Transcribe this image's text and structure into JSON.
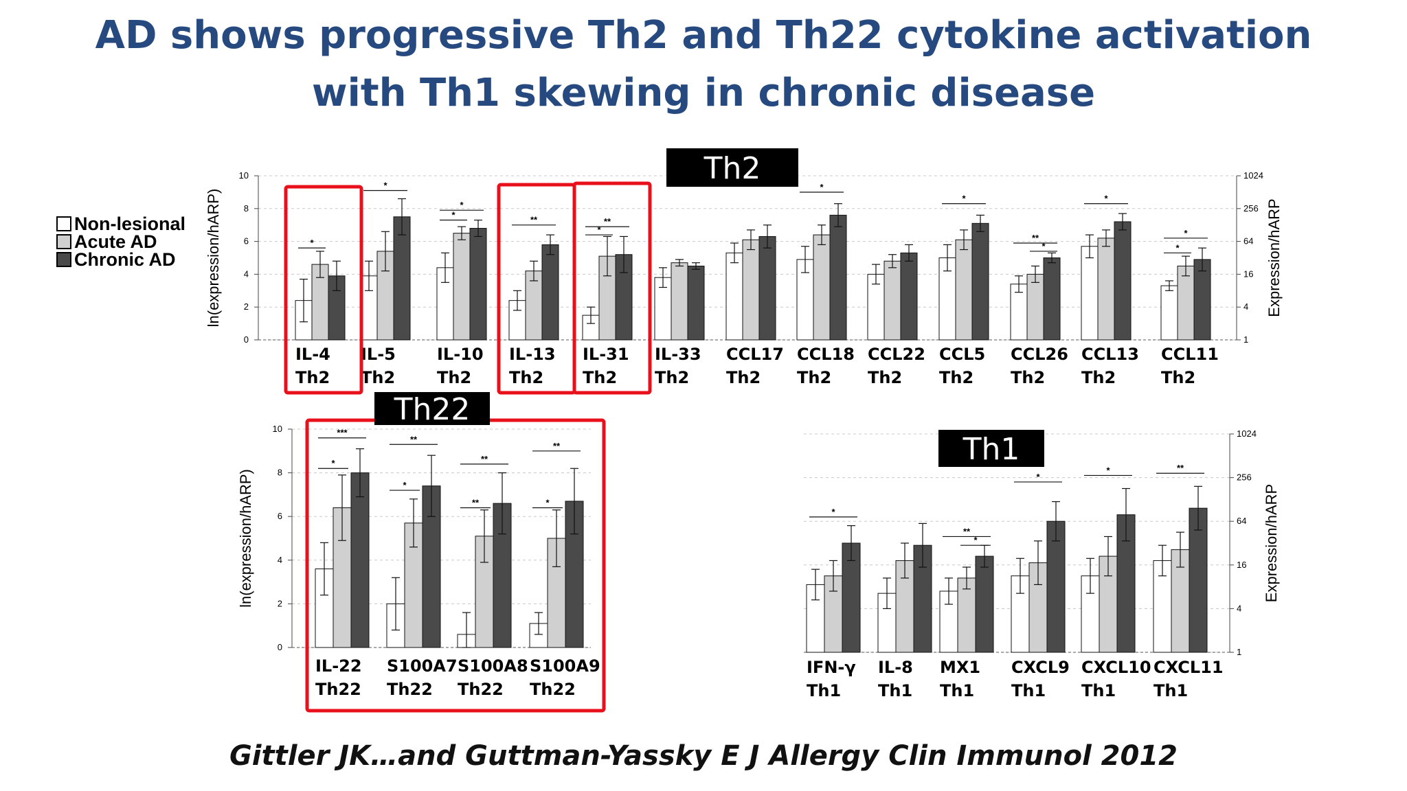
{
  "title": {
    "line1": "AD shows progressive Th2 and Th22 cytokine activation",
    "line2": "with Th1 skewing in chronic disease"
  },
  "legend": [
    {
      "label": "Non-lesional",
      "color": "#ffffff"
    },
    {
      "label": "Acute AD",
      "color": "#d0d0d0"
    },
    {
      "label": "Chronic AD",
      "color": "#4a4a4a"
    }
  ],
  "citation": "Gittler JK…and Guttman-Yassky E J Allergy Clin Immunol 2012",
  "colors": {
    "highlight_box": "#e8111b",
    "badge_bg": "#000000",
    "title": "#264a7f"
  },
  "chart_data": [
    {
      "type": "bar",
      "id": "th2",
      "badge": "Th2",
      "ylabel": "ln(expression/hARP)",
      "y2label": "Expression/hARP",
      "ylim": [
        0,
        10
      ],
      "yticks": [
        "0",
        "2",
        "4",
        "6",
        "8",
        "10"
      ],
      "y2ticks": [
        "1",
        "4",
        "16",
        "64",
        "256",
        "1024"
      ],
      "grid": true,
      "series": [
        {
          "name": "Non-lesional",
          "values": [
            2.4,
            3.9,
            4.4,
            2.4,
            1.5,
            3.8,
            5.3,
            4.9,
            4.0,
            5.0,
            3.4,
            5.7,
            3.3
          ]
        },
        {
          "name": "Acute AD",
          "values": [
            4.6,
            5.4,
            6.5,
            4.2,
            5.1,
            4.7,
            6.1,
            6.4,
            4.8,
            6.1,
            4.0,
            6.2,
            4.5
          ]
        },
        {
          "name": "Chronic AD",
          "values": [
            3.9,
            7.5,
            6.8,
            5.8,
            5.2,
            4.5,
            6.3,
            7.6,
            5.3,
            7.1,
            5.0,
            7.2,
            4.9
          ]
        }
      ],
      "errors": [
        [
          1.3,
          0.9,
          0.9,
          0.6,
          0.5,
          0.6,
          0.6,
          0.8,
          0.6,
          0.8,
          0.5,
          0.7,
          0.3
        ],
        [
          0.8,
          1.2,
          0.4,
          0.6,
          1.2,
          0.2,
          0.6,
          0.6,
          0.4,
          0.6,
          0.5,
          0.5,
          0.6
        ],
        [
          0.9,
          1.1,
          0.5,
          0.6,
          1.1,
          0.2,
          0.7,
          0.7,
          0.5,
          0.5,
          0.3,
          0.5,
          0.7
        ]
      ],
      "categories": [
        {
          "name": "IL-4",
          "group": "Th2"
        },
        {
          "name": "IL-5",
          "group": "Th2"
        },
        {
          "name": "IL-10",
          "group": "Th2"
        },
        {
          "name": "IL-13",
          "group": "Th2"
        },
        {
          "name": "IL-31",
          "group": "Th2"
        },
        {
          "name": "IL-33",
          "group": "Th2"
        },
        {
          "name": "CCL17",
          "group": "Th2"
        },
        {
          "name": "CCL18",
          "group": "Th2"
        },
        {
          "name": "CCL22",
          "group": "Th2"
        },
        {
          "name": "CCL5",
          "group": "Th2"
        },
        {
          "name": "CCL26",
          "group": "Th2"
        },
        {
          "name": "CCL13",
          "group": "Th2"
        },
        {
          "name": "CCL11",
          "group": "Th2"
        }
      ],
      "significance": [
        {
          "cat": 0,
          "from": 0,
          "to": 1,
          "y": 5.6,
          "label": "*"
        },
        {
          "cat": 1,
          "from": 0,
          "to": 2,
          "y": 9.1,
          "label": "*"
        },
        {
          "cat": 2,
          "from": 0,
          "to": 1,
          "y": 7.3,
          "label": "*"
        },
        {
          "cat": 2,
          "from": 0,
          "to": 2,
          "y": 7.9,
          "label": "*"
        },
        {
          "cat": 3,
          "from": 0,
          "to": 2,
          "y": 7.0,
          "label": "**"
        },
        {
          "cat": 4,
          "from": 0,
          "to": 1,
          "y": 6.4,
          "label": "*"
        },
        {
          "cat": 4,
          "from": 0,
          "to": 2,
          "y": 6.9,
          "label": "**"
        },
        {
          "cat": 7,
          "from": 0,
          "to": 2,
          "y": 9.0,
          "label": "*"
        },
        {
          "cat": 9,
          "from": 0,
          "to": 2,
          "y": 8.3,
          "label": "*"
        },
        {
          "cat": 10,
          "from": 0,
          "to": 2,
          "y": 5.9,
          "label": "**"
        },
        {
          "cat": 10,
          "from": 1,
          "to": 2,
          "y": 5.4,
          "label": "*"
        },
        {
          "cat": 11,
          "from": 0,
          "to": 2,
          "y": 8.3,
          "label": "*"
        },
        {
          "cat": 12,
          "from": 0,
          "to": 2,
          "y": 6.2,
          "label": "*"
        },
        {
          "cat": 12,
          "from": 0,
          "to": 1,
          "y": 5.3,
          "label": "*"
        }
      ],
      "highlighted": [
        0,
        3,
        4
      ]
    },
    {
      "type": "bar",
      "id": "th22",
      "badge": "Th22",
      "ylabel": "ln(expression/hARP)",
      "ylim": [
        0,
        10
      ],
      "yticks": [
        "0",
        "2",
        "4",
        "6",
        "8",
        "10"
      ],
      "grid": true,
      "series": [
        {
          "name": "Non-lesional",
          "values": [
            3.6,
            2.0,
            0.6,
            1.1
          ]
        },
        {
          "name": "Acute AD",
          "values": [
            6.4,
            5.7,
            5.1,
            5.0
          ]
        },
        {
          "name": "Chronic AD",
          "values": [
            8.0,
            7.4,
            6.6,
            6.7
          ]
        }
      ],
      "errors": [
        [
          1.2,
          1.2,
          1.0,
          0.5
        ],
        [
          1.5,
          1.1,
          1.2,
          1.3
        ],
        [
          1.1,
          1.4,
          1.4,
          1.5
        ]
      ],
      "categories": [
        {
          "name": "IL-22",
          "group": "Th22"
        },
        {
          "name": "S100A7",
          "group": "Th22"
        },
        {
          "name": "S100A8",
          "group": "Th22"
        },
        {
          "name": "S100A9",
          "group": "Th22"
        }
      ],
      "significance": [
        {
          "cat": 0,
          "from": 0,
          "to": 1,
          "y": 8.2,
          "label": "*"
        },
        {
          "cat": 0,
          "from": 0,
          "to": 2,
          "y": 9.6,
          "label": "***"
        },
        {
          "cat": 1,
          "from": 0,
          "to": 1,
          "y": 7.2,
          "label": "*"
        },
        {
          "cat": 1,
          "from": 0,
          "to": 2,
          "y": 9.3,
          "label": "**"
        },
        {
          "cat": 2,
          "from": 0,
          "to": 1,
          "y": 6.4,
          "label": "**"
        },
        {
          "cat": 2,
          "from": 0,
          "to": 2,
          "y": 8.4,
          "label": "**"
        },
        {
          "cat": 3,
          "from": 0,
          "to": 1,
          "y": 6.4,
          "label": "*"
        },
        {
          "cat": 3,
          "from": 0,
          "to": 2,
          "y": 9.0,
          "label": "**"
        }
      ],
      "highlighted": [
        0,
        1,
        2,
        3
      ]
    },
    {
      "type": "bar",
      "id": "th1",
      "badge": "Th1",
      "y2label": "Expression/hARP",
      "ylim": [
        0,
        10
      ],
      "y2ticks": [
        "1",
        "4",
        "16",
        "64",
        "256",
        "1024"
      ],
      "grid": true,
      "series": [
        {
          "name": "Non-lesional",
          "values": [
            3.1,
            2.7,
            2.8,
            3.5,
            3.5,
            4.2
          ]
        },
        {
          "name": "Acute AD",
          "values": [
            3.5,
            4.2,
            3.4,
            4.1,
            4.4,
            4.7
          ]
        },
        {
          "name": "Chronic AD",
          "values": [
            5.0,
            4.9,
            4.4,
            6.0,
            6.3,
            6.6
          ]
        }
      ],
      "errors": [
        [
          0.7,
          0.7,
          0.6,
          0.8,
          0.8,
          0.7
        ],
        [
          0.7,
          0.8,
          0.5,
          1.0,
          0.9,
          0.8
        ],
        [
          0.8,
          1.0,
          0.5,
          0.9,
          1.2,
          1.0
        ]
      ],
      "categories": [
        {
          "name": "IFN-γ",
          "group": "Th1"
        },
        {
          "name": "IL-8",
          "group": "Th1"
        },
        {
          "name": "MX1",
          "group": "Th1"
        },
        {
          "name": "CXCL9",
          "group": "Th1"
        },
        {
          "name": "CXCL10",
          "group": "Th1"
        },
        {
          "name": "CXCL11",
          "group": "Th1"
        }
      ],
      "significance": [
        {
          "cat": 0,
          "from": 0,
          "to": 2,
          "y": 6.2,
          "label": "*"
        },
        {
          "cat": 2,
          "from": 0,
          "to": 2,
          "y": 5.3,
          "label": "**"
        },
        {
          "cat": 2,
          "from": 1,
          "to": 2,
          "y": 4.9,
          "label": "*"
        },
        {
          "cat": 3,
          "from": 0,
          "to": 2,
          "y": 7.8,
          "label": "*"
        },
        {
          "cat": 4,
          "from": 0,
          "to": 2,
          "y": 8.1,
          "label": "*"
        },
        {
          "cat": 5,
          "from": 0,
          "to": 2,
          "y": 8.2,
          "label": "**"
        }
      ],
      "highlighted": []
    }
  ]
}
